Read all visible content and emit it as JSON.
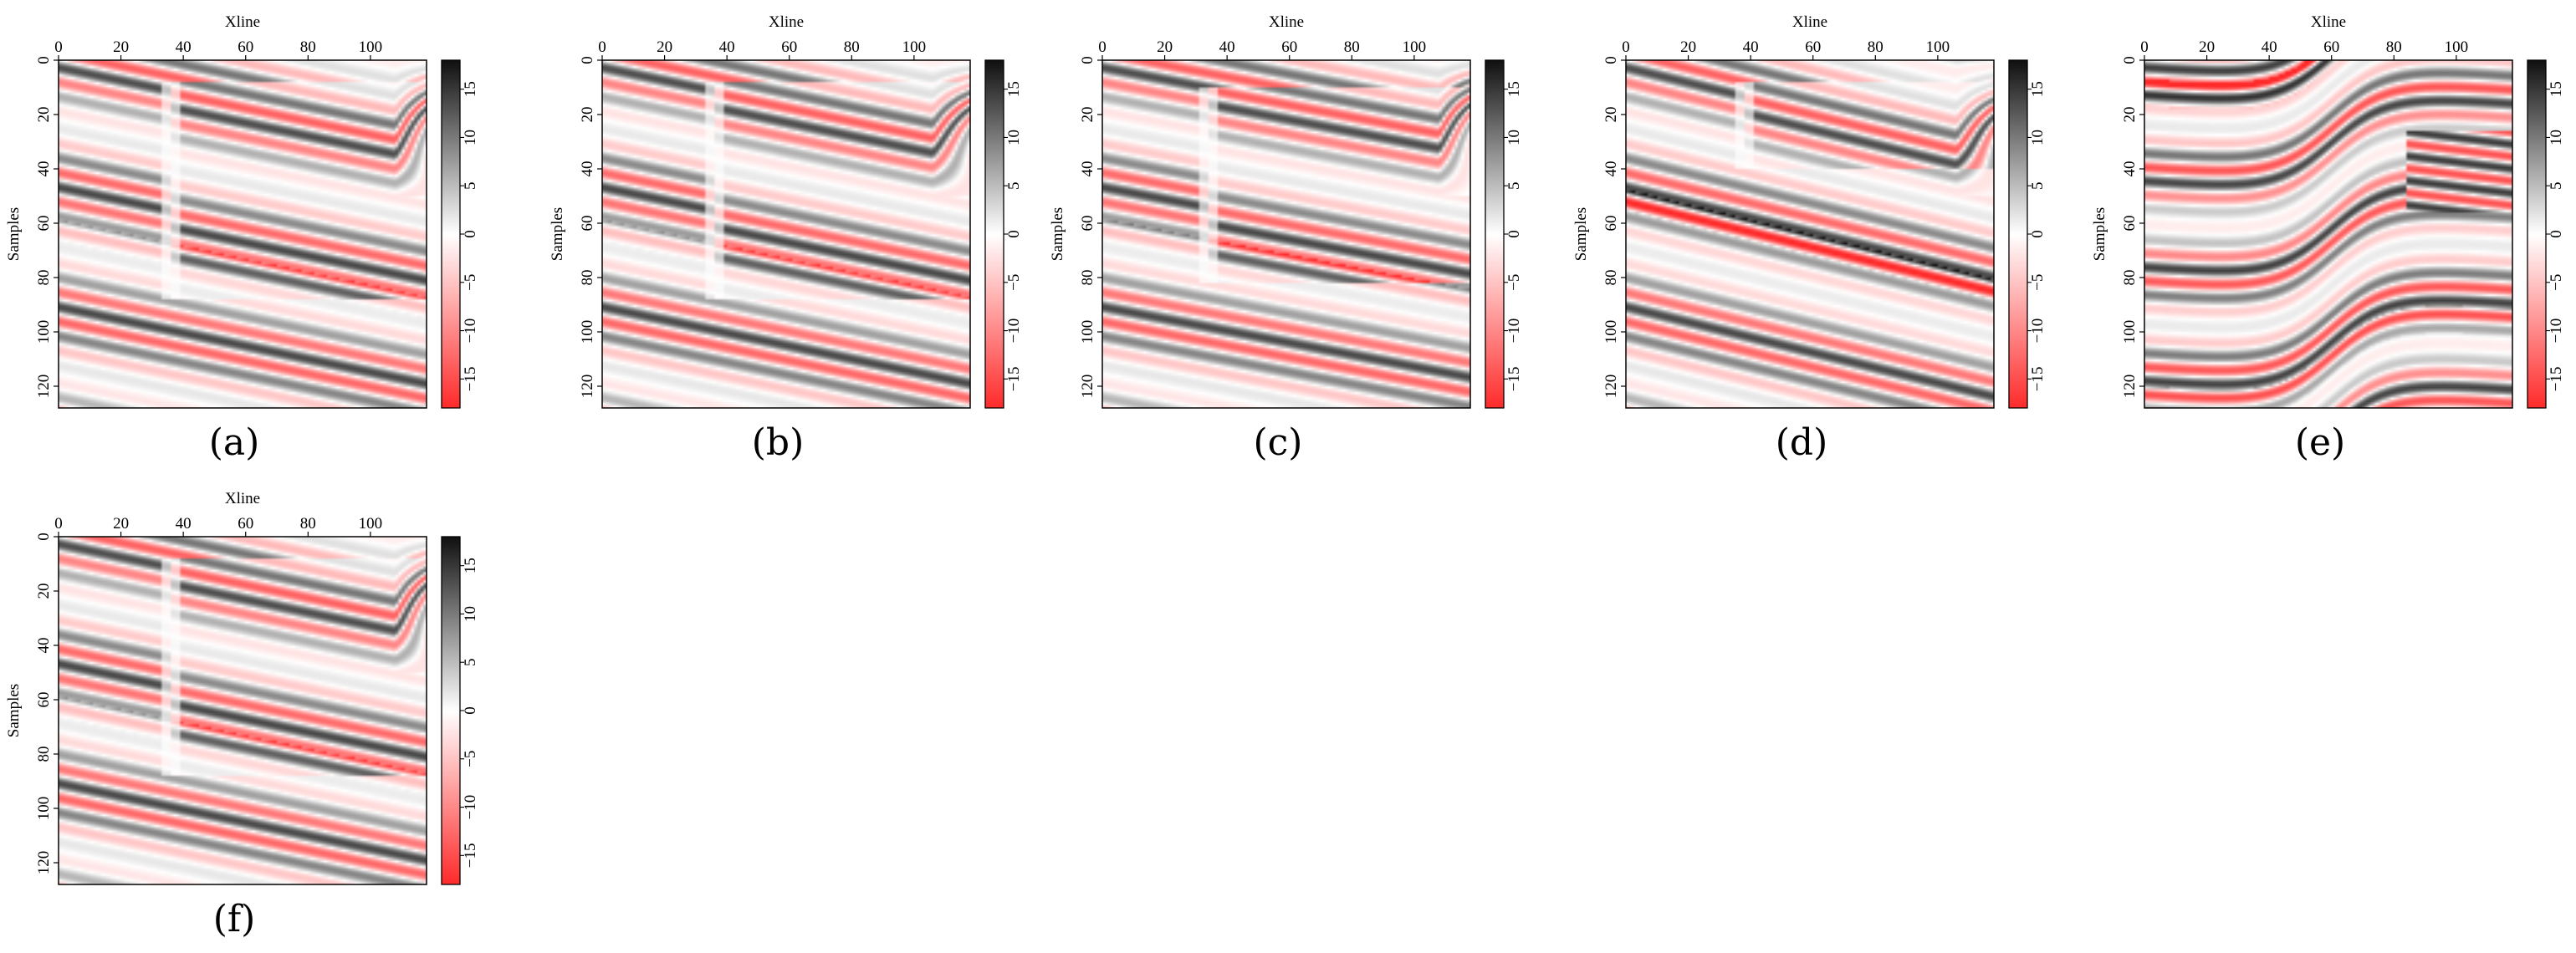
{
  "figure": {
    "colors": {
      "negative": "#ff2b2b",
      "zero": "#ffffff",
      "positive": "#111111",
      "frame": "#000000"
    }
  },
  "chart_data": [
    {
      "type": "heatmap",
      "id": "a",
      "caption": "(a)",
      "xlabel": "Xline",
      "ylabel": "Samples",
      "xlim": [
        0,
        118
      ],
      "ylim": [
        128,
        0
      ],
      "xticks": [
        "0",
        "20",
        "40",
        "60",
        "80",
        "100"
      ],
      "yticks": [
        "0",
        "20",
        "40",
        "60",
        "80",
        "100",
        "120"
      ],
      "colorbar": {
        "range": [
          -18,
          18
        ],
        "ticks": [
          "15",
          "10",
          "5",
          "0",
          "−5",
          "−10",
          "−15"
        ]
      },
      "features": {
        "fault_x": 36,
        "fault_top": 8,
        "fault_bottom": 88,
        "bright_event_sample": 82,
        "bright_event_dip": 0.24,
        "curl_x": 108
      }
    },
    {
      "type": "heatmap",
      "id": "b",
      "caption": "(b)",
      "xlabel": "Xline",
      "ylabel": "Samples",
      "xlim": [
        0,
        118
      ],
      "ylim": [
        128,
        0
      ],
      "xticks": [
        "0",
        "20",
        "40",
        "60",
        "80",
        "100"
      ],
      "yticks": [
        "0",
        "20",
        "40",
        "60",
        "80",
        "100",
        "120"
      ],
      "colorbar": {
        "range": [
          -18,
          18
        ],
        "ticks": [
          "15",
          "10",
          "5",
          "0",
          "−5",
          "−10",
          "−15"
        ]
      },
      "features": {
        "fault_x": 36,
        "fault_top": 8,
        "fault_bottom": 88,
        "bright_event_sample": 82,
        "bright_event_dip": 0.24,
        "curl_x": 106
      }
    },
    {
      "type": "heatmap",
      "id": "c",
      "caption": "(c)",
      "xlabel": "Xline",
      "ylabel": "Samples",
      "xlim": [
        0,
        118
      ],
      "ylim": [
        128,
        0
      ],
      "xticks": [
        "0",
        "20",
        "40",
        "60",
        "80",
        "100"
      ],
      "yticks": [
        "0",
        "20",
        "40",
        "60",
        "80",
        "100",
        "120"
      ],
      "colorbar": {
        "range": [
          -18,
          18
        ],
        "ticks": [
          "15",
          "10",
          "5",
          "0",
          "−5",
          "−10",
          "−15"
        ]
      },
      "features": {
        "fault_x": 34,
        "fault_top": 10,
        "fault_bottom": 82,
        "bright_event_sample": 80,
        "bright_event_dip": 0.22,
        "curl_x": 108
      }
    },
    {
      "type": "heatmap",
      "id": "d",
      "caption": "(d)",
      "xlabel": "Xline",
      "ylabel": "Samples",
      "xlim": [
        0,
        118
      ],
      "ylim": [
        128,
        0
      ],
      "xticks": [
        "0",
        "20",
        "40",
        "60",
        "80",
        "100"
      ],
      "yticks": [
        "0",
        "20",
        "40",
        "60",
        "80",
        "100",
        "120"
      ],
      "colorbar": {
        "range": [
          -18,
          18
        ],
        "ticks": [
          "15",
          "10",
          "5",
          "0",
          "−5",
          "−10",
          "−15"
        ]
      },
      "features": {
        "fault_x": 38,
        "fault_top": 8,
        "fault_bottom": 40,
        "bright_event_sample": 74,
        "bright_event_dip": 0.28,
        "curl_x": 106
      }
    },
    {
      "type": "heatmap",
      "id": "e",
      "caption": "(e)",
      "xlabel": "Xline",
      "ylabel": "Samples",
      "xlim": [
        0,
        118
      ],
      "ylim": [
        128,
        0
      ],
      "xticks": [
        "0",
        "20",
        "40",
        "60",
        "80",
        "100"
      ],
      "yticks": [
        "0",
        "20",
        "40",
        "60",
        "80",
        "100",
        "120"
      ],
      "colorbar": {
        "range": [
          -18,
          18
        ],
        "ticks": [
          "15",
          "10",
          "5",
          "0",
          "−5",
          "−10",
          "−15"
        ]
      },
      "features": {
        "flexure_x": 60,
        "flexure_amplitude": 38,
        "fault_x": 84,
        "top_event_sample": 10,
        "bottom_event_sample": 124
      }
    },
    {
      "type": "heatmap",
      "id": "f",
      "caption": "(f)",
      "xlabel": "Xline",
      "ylabel": "Samples",
      "xlim": [
        0,
        118
      ],
      "ylim": [
        128,
        0
      ],
      "xticks": [
        "0",
        "20",
        "40",
        "60",
        "80",
        "100"
      ],
      "yticks": [
        "0",
        "20",
        "40",
        "60",
        "80",
        "100",
        "120"
      ],
      "colorbar": {
        "range": [
          -18,
          18
        ],
        "ticks": [
          "15",
          "10",
          "5",
          "0",
          "−5",
          "−10",
          "−15"
        ]
      },
      "features": {
        "fault_x": 36,
        "fault_top": 8,
        "fault_bottom": 88,
        "bright_event_sample": 82,
        "bright_event_dip": 0.24,
        "curl_x": 108
      }
    }
  ]
}
